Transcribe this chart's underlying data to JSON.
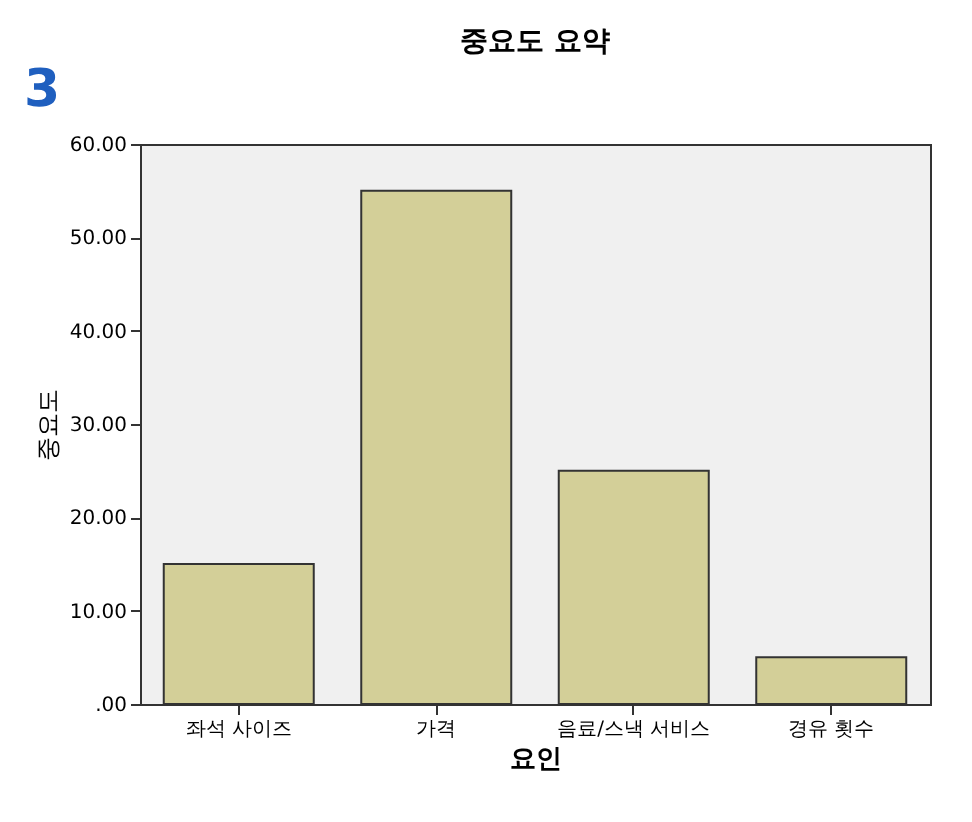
{
  "chart_data": {
    "type": "bar",
    "title": "중요도 요약",
    "xlabel": "요인",
    "ylabel": "중요도",
    "categories": [
      "좌석 사이즈",
      "가격",
      "음료/스낵 서비스",
      "경유 횟수"
    ],
    "values": [
      15,
      55,
      25,
      5
    ],
    "color": "#d3cf98",
    "ylim": [
      0,
      60
    ],
    "yticks": [
      {
        "value": 0,
        "label": ".00"
      },
      {
        "value": 10,
        "label": "10.00"
      },
      {
        "value": 20,
        "label": "20.00"
      },
      {
        "value": 30,
        "label": "30.00"
      },
      {
        "value": 40,
        "label": "40.00"
      },
      {
        "value": 50,
        "label": "50.00"
      },
      {
        "value": 60,
        "label": "60.00"
      }
    ],
    "grid": false,
    "annotations": [
      "3"
    ]
  }
}
